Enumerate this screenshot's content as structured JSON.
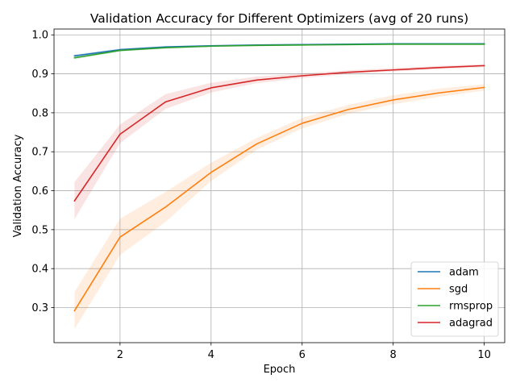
{
  "chart_data": {
    "type": "line",
    "title": "Validation Accuracy for Different Optimizers (avg of 20 runs)",
    "xlabel": "Epoch",
    "ylabel": "Validation Accuracy",
    "xlim": [
      0.55,
      10.45
    ],
    "ylim": [
      0.21,
      1.015
    ],
    "xticks": [
      2,
      4,
      6,
      8,
      10
    ],
    "yticks": [
      0.3,
      0.4,
      0.5,
      0.6,
      0.7,
      0.8,
      0.9,
      1.0
    ],
    "xtick_labels": [
      "2",
      "4",
      "6",
      "8",
      "10"
    ],
    "ytick_labels": [
      "0.3",
      "0.4",
      "0.5",
      "0.6",
      "0.7",
      "0.8",
      "0.9",
      "1.0"
    ],
    "grid": true,
    "legend_position": "lower-right",
    "x": [
      1,
      2,
      3,
      4,
      5,
      6,
      7,
      8,
      9,
      10
    ],
    "series": [
      {
        "name": "adam",
        "color": "#1f77b4",
        "values": [
          0.946,
          0.962,
          0.969,
          0.972,
          0.974,
          0.975,
          0.976,
          0.977,
          0.977,
          0.977
        ],
        "lower": [
          0.942,
          0.959,
          0.967,
          0.97,
          0.972,
          0.973,
          0.974,
          0.975,
          0.975,
          0.975
        ],
        "upper": [
          0.95,
          0.965,
          0.971,
          0.974,
          0.976,
          0.977,
          0.978,
          0.979,
          0.979,
          0.979
        ]
      },
      {
        "name": "sgd",
        "color": "#ff7f0e",
        "values": [
          0.292,
          0.481,
          0.558,
          0.647,
          0.72,
          0.773,
          0.808,
          0.833,
          0.851,
          0.865
        ],
        "lower": [
          0.245,
          0.435,
          0.52,
          0.625,
          0.705,
          0.76,
          0.797,
          0.822,
          0.841,
          0.857
        ],
        "upper": [
          0.34,
          0.528,
          0.597,
          0.672,
          0.735,
          0.787,
          0.82,
          0.845,
          0.862,
          0.873
        ]
      },
      {
        "name": "rmsprop",
        "color": "#2ca02c",
        "values": [
          0.941,
          0.96,
          0.967,
          0.971,
          0.973,
          0.974,
          0.975,
          0.976,
          0.976,
          0.976
        ],
        "lower": [
          0.937,
          0.957,
          0.965,
          0.969,
          0.971,
          0.972,
          0.973,
          0.974,
          0.974,
          0.974
        ],
        "upper": [
          0.945,
          0.963,
          0.969,
          0.973,
          0.975,
          0.976,
          0.977,
          0.978,
          0.978,
          0.978
        ]
      },
      {
        "name": "adagrad",
        "color": "#d62728",
        "values": [
          0.574,
          0.745,
          0.828,
          0.864,
          0.884,
          0.895,
          0.904,
          0.91,
          0.916,
          0.921
        ],
        "lower": [
          0.527,
          0.722,
          0.81,
          0.852,
          0.876,
          0.889,
          0.899,
          0.906,
          0.912,
          0.917
        ],
        "upper": [
          0.622,
          0.77,
          0.848,
          0.877,
          0.893,
          0.901,
          0.909,
          0.915,
          0.92,
          0.925
        ]
      }
    ]
  }
}
